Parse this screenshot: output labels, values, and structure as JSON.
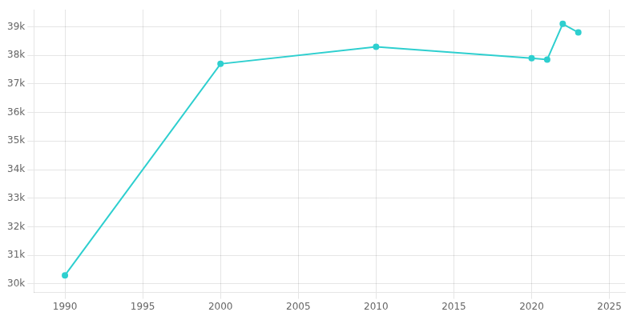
{
  "chart_data": {
    "type": "line",
    "x": [
      1990,
      2000,
      2010,
      2020,
      2021,
      2022,
      2023
    ],
    "values": [
      30300,
      37700,
      38300,
      37900,
      37850,
      39100,
      38800
    ],
    "color": "#2ecfcf",
    "marker": "circle",
    "xlim": [
      1988,
      2026
    ],
    "xticks": [
      1990,
      1995,
      2000,
      2005,
      2010,
      2015,
      2020,
      2025
    ],
    "ylim": [
      29700,
      39600
    ],
    "yticks": [
      {
        "value": 30000,
        "label": "30k"
      },
      {
        "value": 31000,
        "label": "31k"
      },
      {
        "value": 32000,
        "label": "32k"
      },
      {
        "value": 33000,
        "label": "33k"
      },
      {
        "value": 34000,
        "label": "34k"
      },
      {
        "value": 35000,
        "label": "35k"
      },
      {
        "value": 36000,
        "label": "36k"
      },
      {
        "value": 37000,
        "label": "37k"
      },
      {
        "value": 38000,
        "label": "38k"
      },
      {
        "value": 39000,
        "label": "39k"
      }
    ],
    "grid": true
  }
}
